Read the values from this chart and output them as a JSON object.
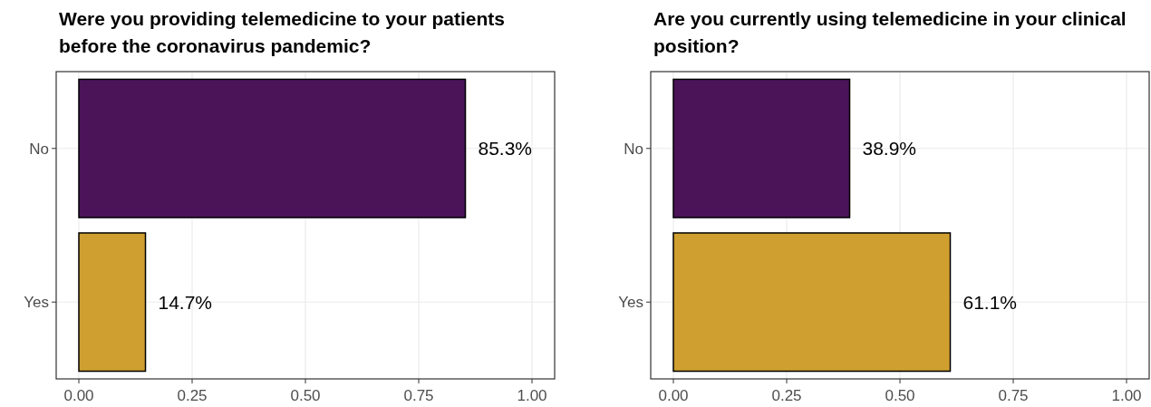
{
  "chart_data": [
    {
      "type": "bar",
      "orientation": "horizontal",
      "title": "Were you providing telemedicine to your patients before the coronavirus pandemic?",
      "categories": [
        "No",
        "Yes"
      ],
      "values": [
        0.853,
        0.147
      ],
      "colors": [
        "#4b1459",
        "#cf9f30"
      ],
      "value_labels": [
        "85.3%",
        "14.7%"
      ],
      "xlim": [
        -0.05,
        1.05
      ],
      "xticks": [
        {
          "value": 0,
          "label": "0.00"
        },
        {
          "value": 0.25,
          "label": "0.25"
        },
        {
          "value": 0.5,
          "label": "0.50"
        },
        {
          "value": 0.75,
          "label": "0.75"
        },
        {
          "value": 1,
          "label": "1.00"
        }
      ],
      "grid": true
    },
    {
      "type": "bar",
      "orientation": "horizontal",
      "title": "Are you currently using telemedicine in your clinical position?",
      "categories": [
        "No",
        "Yes"
      ],
      "values": [
        0.389,
        0.611
      ],
      "colors": [
        "#4b1459",
        "#cf9f30"
      ],
      "value_labels": [
        "38.9%",
        "61.1%"
      ],
      "xlim": [
        -0.05,
        1.05
      ],
      "xticks": [
        {
          "value": 0,
          "label": "0.00"
        },
        {
          "value": 0.25,
          "label": "0.25"
        },
        {
          "value": 0.5,
          "label": "0.50"
        },
        {
          "value": 0.75,
          "label": "0.75"
        },
        {
          "value": 1,
          "label": "1.00"
        }
      ],
      "grid": true
    }
  ]
}
